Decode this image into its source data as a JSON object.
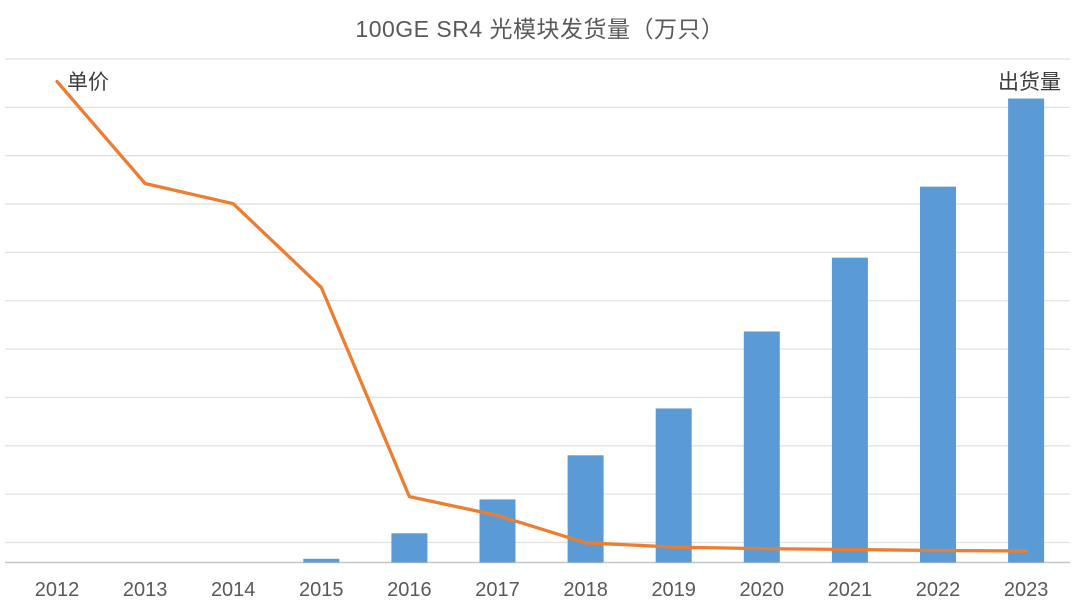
{
  "page": {
    "background": "#ffffff"
  },
  "chart_data": {
    "type": "combo",
    "title": "100GE SR4 光模块发货量（万只）",
    "categories": [
      "2012",
      "2013",
      "2014",
      "2015",
      "2016",
      "2017",
      "2018",
      "2019",
      "2020",
      "2021",
      "2022",
      "2023"
    ],
    "series": [
      {
        "name": "出货量",
        "type": "bar",
        "color": "#5b9bd5",
        "values": [
          0,
          0,
          0,
          0.8,
          6.3,
          13.6,
          23.1,
          33.2,
          49.8,
          65.7,
          81,
          100
        ],
        "scale_note": "estimated, normalized so 2023 = 100; value axis is unlabeled in the image"
      },
      {
        "name": "单价",
        "type": "line",
        "color": "#ed7d31",
        "values": [
          100,
          78.8,
          74.6,
          57.2,
          13.7,
          9.8,
          4.1,
          3.2,
          2.9,
          2.7,
          2.5,
          2.4
        ],
        "scale_note": "estimated price index, 2012 = 100; value axis is unlabeled in the image"
      }
    ],
    "legend": {
      "line_label": "单价",
      "bar_label": "出货量",
      "position": "inside-top-corners"
    },
    "axes": {
      "x_tick_labels": [
        "2012",
        "2013",
        "2014",
        "2015",
        "2016",
        "2017",
        "2018",
        "2019",
        "2020",
        "2021",
        "2022",
        "2023"
      ],
      "y_tick_labels_visible": false,
      "gridlines": "horizontal-only",
      "gridline_count": 11
    },
    "colors": {
      "grid": "#e2e2e2",
      "axis_line": "#c6c6c6",
      "tick_text": "#595959",
      "title_text": "#595959",
      "series_label_text": "#3d3d3d"
    }
  }
}
